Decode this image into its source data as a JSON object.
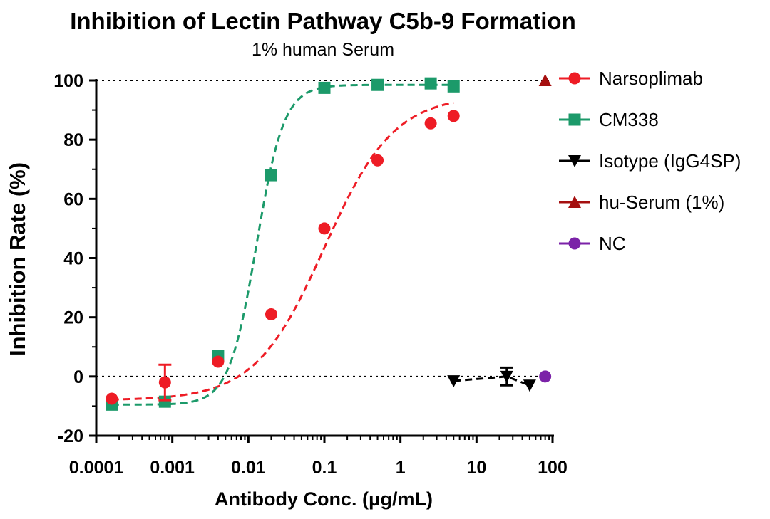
{
  "chart_data": {
    "type": "scatter",
    "title": "Inhibition of Lectin Pathway C5b-9 Formation",
    "subtitle": "1% human Serum",
    "xlabel": "Antibody Conc. (μg/mL)",
    "ylabel": "Inhibition Rate (%)",
    "xscale": "log",
    "xlim": [
      0.0001,
      100
    ],
    "ylim": [
      -20,
      100
    ],
    "xticks": [
      {
        "value": 0.0001,
        "label": "0.0001"
      },
      {
        "value": 0.001,
        "label": "0.001"
      },
      {
        "value": 0.01,
        "label": "0.01"
      },
      {
        "value": 0.1,
        "label": "0.1"
      },
      {
        "value": 1,
        "label": "1"
      },
      {
        "value": 10,
        "label": "10"
      },
      {
        "value": 100,
        "label": "100"
      }
    ],
    "yticks": [
      {
        "value": -20,
        "label": "-20"
      },
      {
        "value": 0,
        "label": "0"
      },
      {
        "value": 20,
        "label": "20"
      },
      {
        "value": 40,
        "label": "40"
      },
      {
        "value": 60,
        "label": "60"
      },
      {
        "value": 80,
        "label": "80"
      },
      {
        "value": 100,
        "label": "100"
      }
    ],
    "reference_lines": [
      0,
      100
    ],
    "legend_position": "right",
    "series": [
      {
        "name": "Narsoplimab",
        "marker": "circle",
        "color": "#ee1c25",
        "x": [
          0.00016,
          0.0008,
          0.004,
          0.02,
          0.1,
          0.5,
          2.5,
          5
        ],
        "y": [
          -7.5,
          -2,
          5,
          21,
          50,
          73,
          85.5,
          88
        ],
        "err": [
          0,
          6,
          0,
          0,
          0,
          0,
          0,
          0
        ],
        "fit": {
          "bottom": -8,
          "top": 95,
          "ec50": 0.1,
          "hill": 0.95,
          "xmin": 0.00016,
          "xmax": 5
        }
      },
      {
        "name": "CM338",
        "marker": "square",
        "color": "#1c9a6a",
        "x": [
          0.00016,
          0.0008,
          0.004,
          0.02,
          0.1,
          0.5,
          2.5,
          5
        ],
        "y": [
          -9.5,
          -8.5,
          7,
          68,
          97.5,
          98.5,
          99,
          98
        ],
        "err": [
          0,
          0,
          0,
          0,
          0,
          0,
          0,
          0
        ],
        "fit": {
          "bottom": -9.5,
          "top": 98.5,
          "ec50": 0.0128,
          "hill": 2.4,
          "xmin": 0.00016,
          "xmax": 5
        }
      },
      {
        "name": "Isotype (IgG4SP)",
        "marker": "triangle-down",
        "color": "#000000",
        "x": [
          5,
          25,
          50
        ],
        "y": [
          -1.5,
          0,
          -3
        ],
        "err": [
          0,
          3,
          0
        ],
        "connect": true
      },
      {
        "name": "hu-Serum (1%)",
        "marker": "triangle-up",
        "color": "#a50f0f",
        "x": [
          80
        ],
        "y": [
          100
        ],
        "err": [
          0
        ]
      },
      {
        "name": "NC",
        "marker": "circle",
        "color": "#7b22a8",
        "x": [
          80
        ],
        "y": [
          0
        ],
        "err": [
          0
        ]
      }
    ]
  }
}
